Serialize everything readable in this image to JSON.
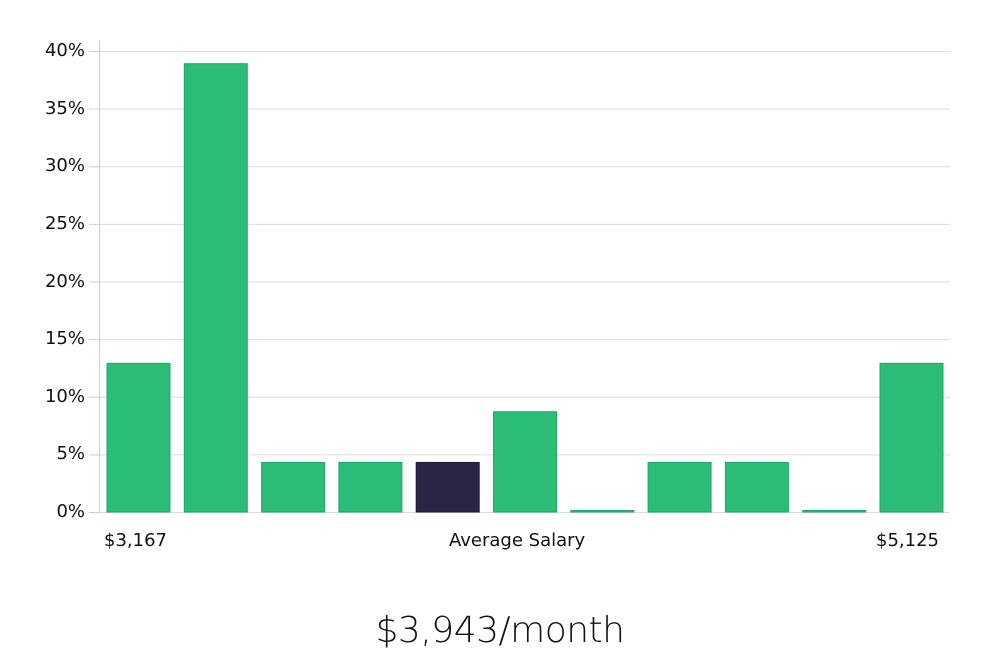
{
  "chart_data": {
    "type": "bar",
    "title": "",
    "xlabel": "Average Salary",
    "ylabel": "",
    "x_range_labels": {
      "min": "$3,167",
      "max": "$5,125"
    },
    "categories": [
      "bin1",
      "bin2",
      "bin3",
      "bin4",
      "bin5",
      "bin6",
      "bin7",
      "bin8",
      "bin9",
      "bin10",
      "bin11"
    ],
    "values": [
      12.9,
      38.9,
      4.3,
      4.3,
      4.3,
      8.7,
      0.0,
      4.3,
      4.3,
      0.0,
      12.9
    ],
    "highlight_index": 4,
    "ylim": [
      0,
      40
    ],
    "yticks": [
      0,
      5,
      10,
      15,
      20,
      25,
      30,
      35,
      40
    ],
    "ytick_labels": [
      "0%",
      "5%",
      "10%",
      "15%",
      "20%",
      "25%",
      "30%",
      "35%",
      "40%"
    ],
    "grid": true,
    "legend": null,
    "colors": {
      "bar": "#2bbd77",
      "bar_edge": "#22a866",
      "highlight": "#2a2545",
      "grid": "#dcdcdc",
      "axis": "#cccccc"
    }
  },
  "labels": {
    "x_min": "$3,167",
    "x_center": "Average Salary",
    "x_max": "$5,125"
  },
  "summary": {
    "average_salary": "$3,943/month"
  }
}
